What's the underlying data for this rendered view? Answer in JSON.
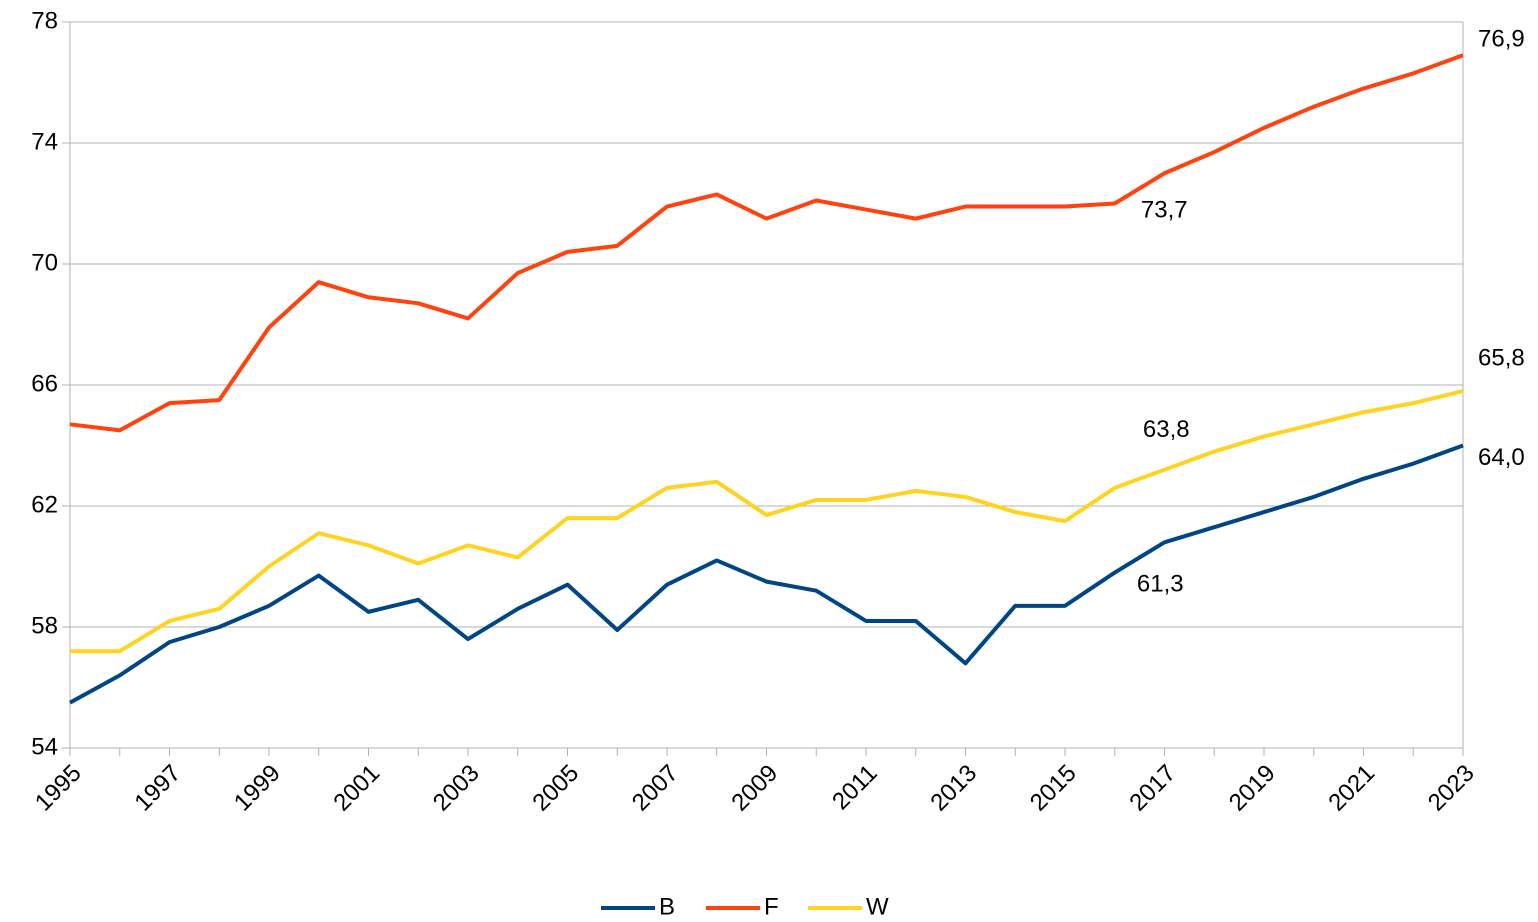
{
  "chart_data": {
    "type": "line",
    "x": [
      1995,
      1996,
      1997,
      1998,
      1999,
      2000,
      2001,
      2002,
      2003,
      2004,
      2005,
      2006,
      2007,
      2008,
      2009,
      2010,
      2011,
      2012,
      2013,
      2014,
      2015,
      2016,
      2017,
      2018,
      2019,
      2020,
      2021,
      2022,
      2023
    ],
    "xlim": [
      1995,
      2023
    ],
    "xticks": [
      1995,
      1997,
      1999,
      2001,
      2003,
      2005,
      2007,
      2009,
      2011,
      2013,
      2015,
      2017,
      2019,
      2021,
      2023
    ],
    "ylim": [
      54,
      78
    ],
    "yticks": [
      54,
      58,
      62,
      66,
      70,
      74,
      78
    ],
    "grid": true,
    "legend": "bottom",
    "series": [
      {
        "name": "B",
        "color": "#004586",
        "values": [
          55.5,
          56.4,
          57.5,
          58.0,
          58.7,
          59.7,
          58.5,
          58.9,
          57.6,
          58.6,
          59.4,
          57.9,
          59.4,
          60.2,
          59.5,
          59.2,
          58.2,
          58.2,
          56.8,
          58.7,
          58.7,
          59.8,
          60.8,
          61.3,
          61.8,
          62.3,
          62.9,
          63.4,
          64.0
        ],
        "value_labels": [
          null,
          null,
          null,
          null,
          null,
          null,
          null,
          null,
          null,
          null,
          null,
          null,
          null,
          null,
          null,
          null,
          null,
          null,
          null,
          null,
          null,
          null,
          null,
          "61,3",
          null,
          null,
          null,
          null,
          "64,0"
        ]
      },
      {
        "name": "F",
        "color": "#ff420e",
        "values": [
          64.7,
          64.5,
          65.4,
          65.5,
          67.9,
          69.4,
          68.9,
          68.7,
          68.2,
          69.7,
          70.4,
          70.6,
          71.9,
          72.3,
          71.5,
          72.1,
          71.8,
          71.5,
          71.9,
          71.9,
          71.9,
          72.0,
          73.0,
          73.7,
          74.5,
          75.2,
          75.8,
          76.3,
          76.9
        ],
        "value_labels": [
          null,
          null,
          null,
          null,
          null,
          null,
          null,
          null,
          null,
          null,
          null,
          null,
          null,
          null,
          null,
          null,
          null,
          null,
          null,
          null,
          null,
          null,
          null,
          "73,7",
          null,
          null,
          null,
          null,
          "76,9"
        ]
      },
      {
        "name": "W",
        "color": "#ffd320",
        "values": [
          57.2,
          57.2,
          58.2,
          58.6,
          60.0,
          61.1,
          60.7,
          60.1,
          60.7,
          60.3,
          61.6,
          61.6,
          62.6,
          62.8,
          61.7,
          62.2,
          62.2,
          62.5,
          62.3,
          61.8,
          61.5,
          62.6,
          63.2,
          63.8,
          64.3,
          64.7,
          65.1,
          65.4,
          65.8
        ],
        "value_labels": [
          null,
          null,
          null,
          null,
          null,
          null,
          null,
          null,
          null,
          null,
          null,
          null,
          null,
          null,
          null,
          null,
          null,
          null,
          null,
          null,
          null,
          null,
          null,
          "63,8",
          null,
          null,
          null,
          null,
          "65,8"
        ]
      }
    ]
  }
}
